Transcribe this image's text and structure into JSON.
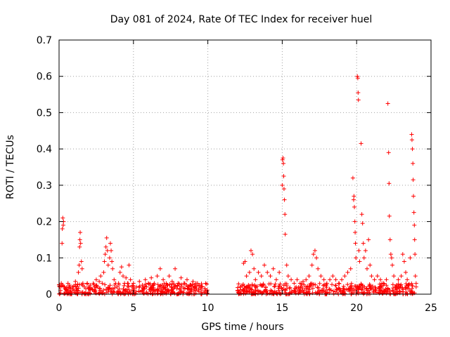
{
  "chart_data": {
    "type": "scatter",
    "title": "Day 081 of 2024, Rate Of TEC Index for receiver huel",
    "xlabel": "GPS time / hours",
    "ylabel": "ROTI / TECUs",
    "xlim": [
      0,
      25
    ],
    "ylim": [
      0,
      0.7
    ],
    "x_ticks": [
      0,
      5,
      10,
      15,
      20,
      25
    ],
    "x_tick_labels": [
      "0",
      "5",
      "10",
      "15",
      "20",
      "25"
    ],
    "y_ticks": [
      0,
      0.1,
      0.2,
      0.3,
      0.4,
      0.5,
      0.6,
      0.7
    ],
    "y_tick_labels": [
      "0",
      "0.1",
      "0.2",
      "0.3",
      "0.4",
      "0.5",
      "0.6",
      "0.7"
    ],
    "grid": true,
    "marker": "plus",
    "color": "#ff0000",
    "series": [
      {
        "name": "ROTI",
        "points": [
          [
            0.05,
            0.02
          ],
          [
            0.1,
            0.01
          ],
          [
            0.15,
            0.03
          ],
          [
            0.2,
            0.14
          ],
          [
            0.22,
            0.18
          ],
          [
            0.25,
            0.21
          ],
          [
            0.28,
            0.19
          ],
          [
            0.3,
            0.2
          ],
          [
            0.35,
            0.02
          ],
          [
            0.4,
            0.015
          ],
          [
            0.5,
            0.01
          ],
          [
            0.6,
            0.03
          ],
          [
            0.7,
            0.025
          ],
          [
            0.8,
            0.015
          ],
          [
            0.9,
            0.02
          ],
          [
            1.0,
            0.01
          ],
          [
            1.1,
            0.035
          ],
          [
            1.2,
            0.02
          ],
          [
            1.3,
            0.06
          ],
          [
            1.35,
            0.08
          ],
          [
            1.38,
            0.13
          ],
          [
            1.4,
            0.15
          ],
          [
            1.42,
            0.17
          ],
          [
            1.45,
            0.14
          ],
          [
            1.5,
            0.09
          ],
          [
            1.55,
            0.07
          ],
          [
            1.6,
            0.03
          ],
          [
            1.7,
            0.02
          ],
          [
            1.8,
            0.015
          ],
          [
            1.9,
            0.03
          ],
          [
            2.0,
            0.02
          ],
          [
            2.1,
            0.025
          ],
          [
            2.2,
            0.015
          ],
          [
            2.3,
            0.03
          ],
          [
            2.4,
            0.02
          ],
          [
            2.5,
            0.04
          ],
          [
            2.6,
            0.02
          ],
          [
            2.7,
            0.035
          ],
          [
            2.8,
            0.05
          ],
          [
            2.9,
            0.03
          ],
          [
            3.0,
            0.06
          ],
          [
            3.05,
            0.09
          ],
          [
            3.1,
            0.11
          ],
          [
            3.15,
            0.13
          ],
          [
            3.2,
            0.155
          ],
          [
            3.25,
            0.12
          ],
          [
            3.3,
            0.08
          ],
          [
            3.4,
            0.1
          ],
          [
            3.45,
            0.14
          ],
          [
            3.5,
            0.12
          ],
          [
            3.55,
            0.09
          ],
          [
            3.6,
            0.07
          ],
          [
            3.7,
            0.04
          ],
          [
            3.8,
            0.03
          ],
          [
            3.9,
            0.02
          ],
          [
            4.0,
            0.03
          ],
          [
            4.1,
            0.06
          ],
          [
            4.2,
            0.075
          ],
          [
            4.3,
            0.05
          ],
          [
            4.4,
            0.03
          ],
          [
            4.5,
            0.045
          ],
          [
            4.6,
            0.03
          ],
          [
            4.7,
            0.08
          ],
          [
            4.8,
            0.04
          ],
          [
            4.9,
            0.02
          ],
          [
            5.0,
            0.03
          ],
          [
            5.2,
            0.02
          ],
          [
            5.4,
            0.035
          ],
          [
            5.6,
            0.025
          ],
          [
            5.8,
            0.04
          ],
          [
            6.0,
            0.03
          ],
          [
            6.2,
            0.045
          ],
          [
            6.4,
            0.03
          ],
          [
            6.6,
            0.05
          ],
          [
            6.8,
            0.07
          ],
          [
            7.0,
            0.04
          ],
          [
            7.2,
            0.03
          ],
          [
            7.4,
            0.05
          ],
          [
            7.6,
            0.035
          ],
          [
            7.8,
            0.07
          ],
          [
            8.0,
            0.03
          ],
          [
            8.2,
            0.045
          ],
          [
            8.4,
            0.03
          ],
          [
            8.6,
            0.04
          ],
          [
            8.8,
            0.025
          ],
          [
            9.0,
            0.035
          ],
          [
            9.2,
            0.03
          ],
          [
            9.4,
            0.025
          ],
          [
            9.6,
            0.02
          ],
          [
            9.8,
            0.015
          ],
          [
            12.0,
            0.01
          ],
          [
            12.2,
            0.02
          ],
          [
            12.4,
            0.085
          ],
          [
            12.5,
            0.09
          ],
          [
            12.6,
            0.05
          ],
          [
            12.8,
            0.06
          ],
          [
            12.9,
            0.12
          ],
          [
            13.0,
            0.11
          ],
          [
            13.1,
            0.07
          ],
          [
            13.2,
            0.04
          ],
          [
            13.4,
            0.06
          ],
          [
            13.6,
            0.05
          ],
          [
            13.8,
            0.08
          ],
          [
            14.0,
            0.06
          ],
          [
            14.2,
            0.05
          ],
          [
            14.4,
            0.07
          ],
          [
            14.6,
            0.04
          ],
          [
            14.8,
            0.06
          ],
          [
            15.0,
            0.3
          ],
          [
            15.02,
            0.37
          ],
          [
            15.05,
            0.375
          ],
          [
            15.08,
            0.36
          ],
          [
            15.1,
            0.325
          ],
          [
            15.12,
            0.29
          ],
          [
            15.15,
            0.26
          ],
          [
            15.18,
            0.22
          ],
          [
            15.2,
            0.165
          ],
          [
            15.3,
            0.08
          ],
          [
            15.4,
            0.05
          ],
          [
            15.6,
            0.04
          ],
          [
            15.8,
            0.03
          ],
          [
            16.0,
            0.04
          ],
          [
            16.2,
            0.03
          ],
          [
            16.4,
            0.035
          ],
          [
            16.6,
            0.04
          ],
          [
            16.8,
            0.05
          ],
          [
            17.0,
            0.08
          ],
          [
            17.1,
            0.11
          ],
          [
            17.2,
            0.12
          ],
          [
            17.3,
            0.1
          ],
          [
            17.4,
            0.07
          ],
          [
            17.6,
            0.05
          ],
          [
            17.8,
            0.04
          ],
          [
            18.0,
            0.03
          ],
          [
            18.2,
            0.04
          ],
          [
            18.4,
            0.05
          ],
          [
            18.6,
            0.04
          ],
          [
            18.8,
            0.03
          ],
          [
            19.0,
            0.04
          ],
          [
            19.2,
            0.05
          ],
          [
            19.4,
            0.06
          ],
          [
            19.6,
            0.07
          ],
          [
            19.75,
            0.32
          ],
          [
            19.8,
            0.26
          ],
          [
            19.82,
            0.27
          ],
          [
            19.85,
            0.24
          ],
          [
            19.88,
            0.2
          ],
          [
            19.9,
            0.17
          ],
          [
            19.92,
            0.14
          ],
          [
            19.95,
            0.1
          ],
          [
            20.05,
            0.6
          ],
          [
            20.08,
            0.595
          ],
          [
            20.1,
            0.555
          ],
          [
            20.12,
            0.535
          ],
          [
            20.15,
            0.12
          ],
          [
            20.2,
            0.09
          ],
          [
            20.3,
            0.415
          ],
          [
            20.35,
            0.22
          ],
          [
            20.4,
            0.195
          ],
          [
            20.45,
            0.14
          ],
          [
            20.5,
            0.1
          ],
          [
            20.6,
            0.12
          ],
          [
            20.7,
            0.07
          ],
          [
            20.8,
            0.15
          ],
          [
            20.9,
            0.08
          ],
          [
            21.0,
            0.05
          ],
          [
            21.2,
            0.04
          ],
          [
            21.4,
            0.05
          ],
          [
            21.6,
            0.04
          ],
          [
            21.8,
            0.03
          ],
          [
            22.0,
            0.04
          ],
          [
            22.1,
            0.525
          ],
          [
            22.15,
            0.39
          ],
          [
            22.18,
            0.305
          ],
          [
            22.2,
            0.215
          ],
          [
            22.25,
            0.15
          ],
          [
            22.3,
            0.11
          ],
          [
            22.35,
            0.1
          ],
          [
            22.4,
            0.08
          ],
          [
            22.5,
            0.05
          ],
          [
            22.8,
            0.04
          ],
          [
            23.0,
            0.05
          ],
          [
            23.1,
            0.11
          ],
          [
            23.2,
            0.09
          ],
          [
            23.3,
            0.06
          ],
          [
            23.4,
            0.04
          ],
          [
            23.6,
            0.1
          ],
          [
            23.7,
            0.44
          ],
          [
            23.72,
            0.425
          ],
          [
            23.75,
            0.4
          ],
          [
            23.78,
            0.36
          ],
          [
            23.8,
            0.315
          ],
          [
            23.82,
            0.27
          ],
          [
            23.85,
            0.225
          ],
          [
            23.88,
            0.19
          ],
          [
            23.9,
            0.15
          ],
          [
            23.92,
            0.11
          ],
          [
            23.95,
            0.05
          ],
          [
            24.0,
            0.02
          ]
        ]
      }
    ],
    "background_band": {
      "segments": [
        [
          0.0,
          10.0
        ],
        [
          12.0,
          24.0
        ]
      ],
      "y_min": 0.0,
      "y_max": 0.03
    }
  }
}
